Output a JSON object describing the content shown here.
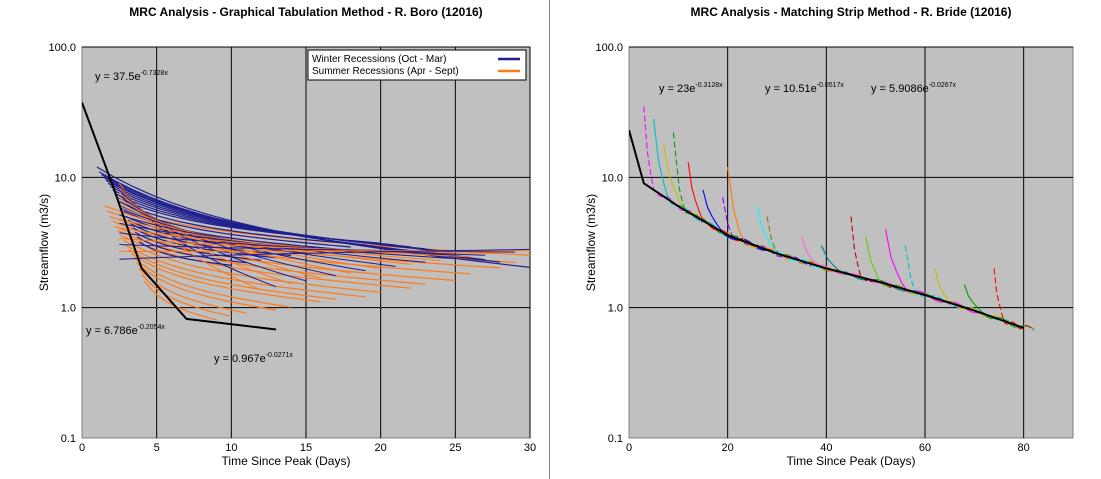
{
  "chart_data": [
    {
      "type": "line",
      "title": "MRC Analysis - Graphical Tabulation Method - R. Boro (12016)",
      "xlabel": "Time Since Peak (Days)",
      "ylabel": "Streamflow (m3/s)",
      "xlim": [
        0,
        30
      ],
      "ylim": [
        0.1,
        100
      ],
      "yscale": "log",
      "x_ticks": [
        "0",
        "5",
        "10",
        "15",
        "20",
        "25",
        "30"
      ],
      "y_ticks": [
        "0.1",
        "1.0",
        "10.0",
        "100.0"
      ],
      "grid": true,
      "legend_position": "top-right",
      "legend": [
        {
          "label": "Winter Recessions (Oct - Mar)",
          "color": "#1f1f8f"
        },
        {
          "label": "Summer Recessions (Apr - Sept)",
          "color": "#ff7a1a"
        }
      ],
      "equations": [
        {
          "base": "y = 37.5e",
          "exp": "-0.7328x"
        },
        {
          "base": "y = 6.786e",
          "exp": "-0.2054x"
        },
        {
          "base": "y = 0.967e",
          "exp": "-0.0271x"
        }
      ],
      "series": [
        {
          "name": "Winter Recessions (Oct - Mar)",
          "color": "#1f1f8f",
          "start_y": [
            12,
            11,
            10.5,
            10,
            9.5,
            9,
            8.5,
            8,
            7.5,
            7,
            6.5,
            6,
            5.5,
            5,
            4.7,
            4.4,
            4.1,
            3.8,
            3.5,
            3.2
          ],
          "end_x": [
            30,
            28,
            27,
            26,
            25,
            24,
            23,
            22,
            21,
            20,
            19,
            18,
            17,
            16,
            15,
            14,
            13,
            12,
            11,
            10
          ],
          "end_y": [
            2.0,
            2.2,
            2.3,
            2.4,
            2.6,
            2.7,
            2.8,
            2.9,
            3.0,
            3.1,
            3.0,
            2.9,
            2.8,
            2.7,
            2.6,
            2.5,
            2.4,
            2.3,
            2.2,
            2.1
          ]
        },
        {
          "name": "Summer Recessions (Apr - Sept)",
          "color": "#ff7a1a",
          "start_y": [
            6,
            5.5,
            5,
            4.6,
            4.2,
            3.9,
            3.6,
            3.3,
            3.0,
            2.8,
            2.6,
            2.4,
            2.2,
            2.0,
            1.8,
            1.6
          ],
          "end_x": [
            30,
            29,
            28,
            26,
            25,
            23,
            22,
            20,
            19,
            17,
            16,
            14,
            13,
            11,
            10,
            9
          ],
          "end_y": [
            2.5,
            2.2,
            2.0,
            1.8,
            1.6,
            1.5,
            1.4,
            1.3,
            1.2,
            1.15,
            1.1,
            1.0,
            0.95,
            0.9,
            0.85,
            0.8
          ]
        },
        {
          "name": "Master recession",
          "color": "#000000",
          "x": [
            0,
            2,
            4,
            7,
            13
          ],
          "y": [
            37.5,
            9.0,
            2.0,
            0.82,
            0.68
          ]
        }
      ]
    },
    {
      "type": "line",
      "title": "MRC Analysis - Matching Strip Method - R. Bride (12016)",
      "xlabel": "Time Since Peak (Days)",
      "ylabel": "Streamflow (m3/s)",
      "xlim": [
        0,
        90
      ],
      "ylim": [
        0.1,
        100
      ],
      "yscale": "log",
      "x_ticks": [
        "0",
        "20",
        "40",
        "60",
        "80"
      ],
      "y_ticks": [
        "0.1",
        "1.0",
        "10.0",
        "100.0"
      ],
      "grid": true,
      "equations": [
        {
          "base": "y = 23e",
          "exp": "-0.3128x"
        },
        {
          "base": "y = 10.51e",
          "exp": "-0.0517x"
        },
        {
          "base": "y = 5.9086e",
          "exp": "-0.0267x"
        }
      ],
      "series": [
        {
          "name": "Master recession",
          "color": "#000000",
          "x": [
            0,
            3,
            10,
            20,
            30,
            40,
            50,
            60,
            70,
            80
          ],
          "y": [
            23,
            9.0,
            6.0,
            3.6,
            2.6,
            2.0,
            1.6,
            1.25,
            0.95,
            0.7
          ]
        },
        {
          "name": "Recession strips",
          "color": "mixed",
          "start_x": [
            3,
            5,
            7,
            9,
            12,
            15,
            19,
            20,
            26,
            28,
            35,
            39,
            45,
            48,
            52,
            56,
            62,
            68,
            74
          ],
          "start_y": [
            35,
            28,
            18,
            22,
            13,
            8,
            7,
            12,
            6,
            5,
            3.5,
            3.0,
            5.0,
            3.5,
            4.0,
            3.0,
            2.0,
            1.5,
            2.0
          ]
        }
      ]
    }
  ]
}
